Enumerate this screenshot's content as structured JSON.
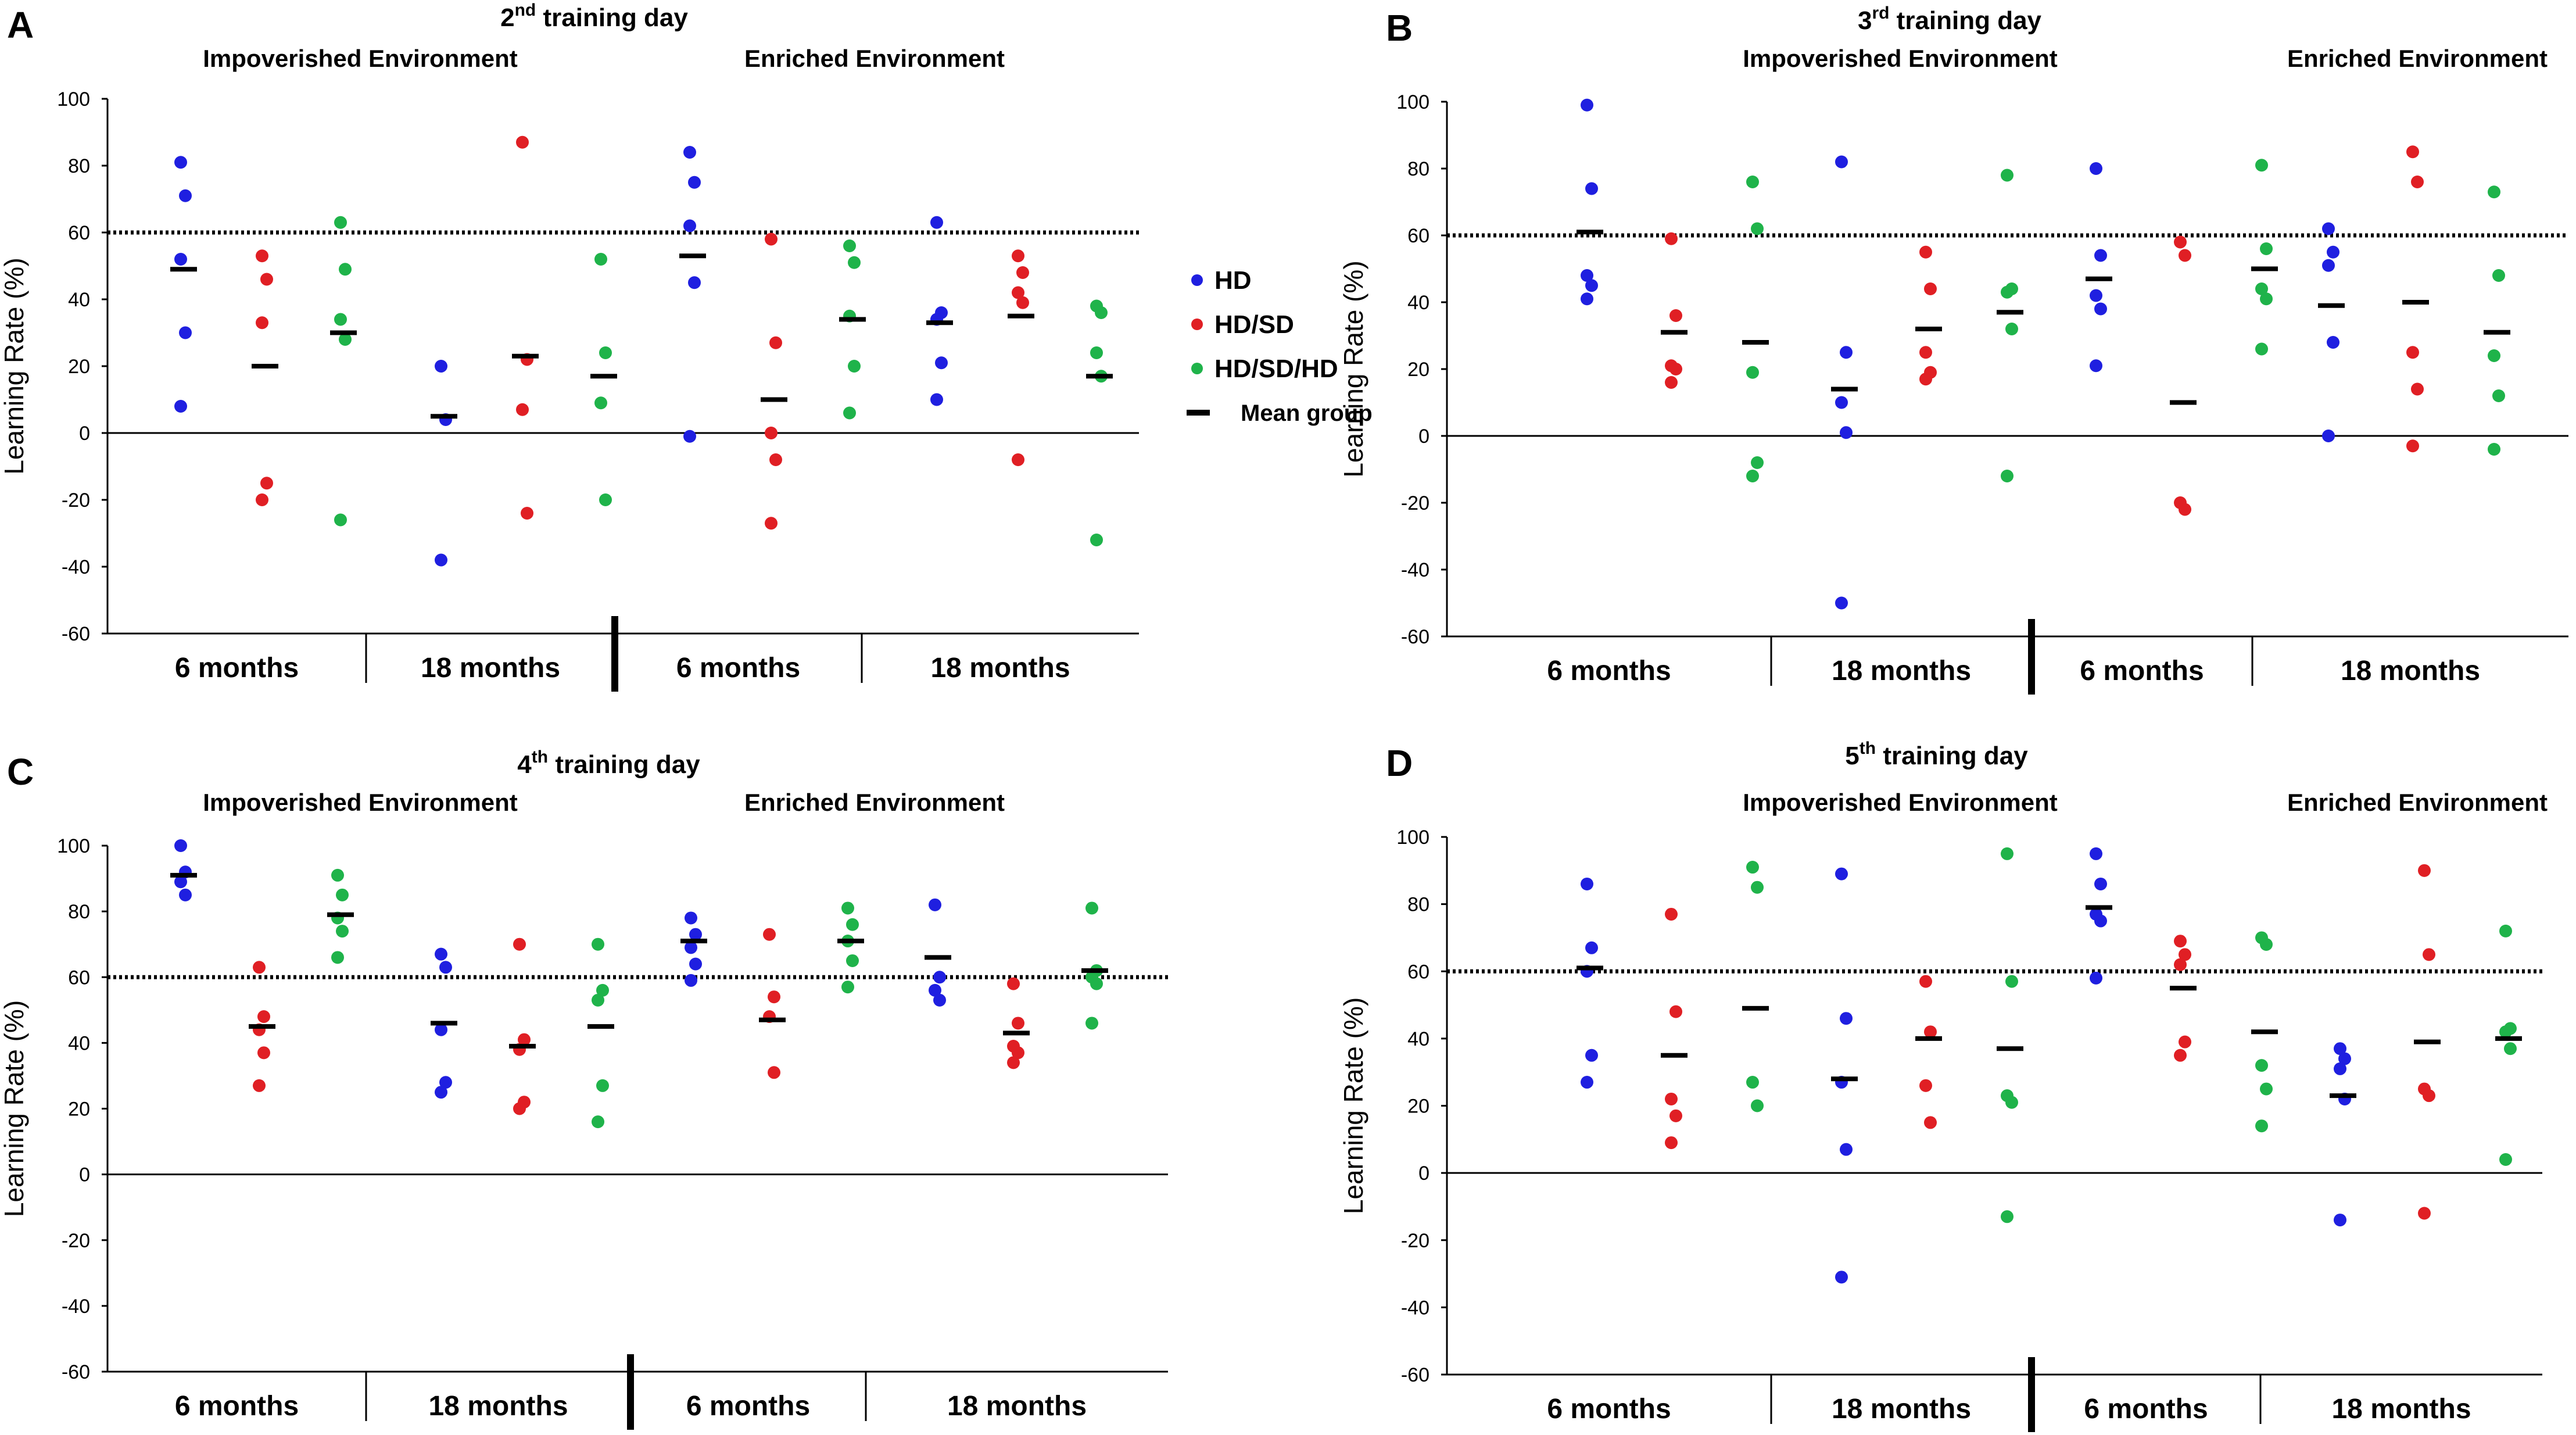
{
  "colors": {
    "HD": "#1f1fe0",
    "HD/SD": "#e01f24",
    "HD/SD/HD": "#1fb34a",
    "mean": "#000000"
  },
  "legend": [
    {
      "key": "HD",
      "label": "HD"
    },
    {
      "key": "HD/SD",
      "label": "HD/SD"
    },
    {
      "key": "HD/SD/HD",
      "label": "HD/SD/HD"
    },
    {
      "key": "mean",
      "label": "Mean group"
    }
  ],
  "shared": {
    "ylabel": "Learning Rate (%)",
    "ylim": [
      -60,
      100
    ],
    "yticks": [
      100,
      80,
      60,
      40,
      20,
      0,
      -20,
      -40,
      -60
    ],
    "threshold": 60,
    "env_labels": [
      "Impoverished Environment",
      "Enriched Environment"
    ],
    "age_labels": [
      "6 months",
      "18 months",
      "6 months",
      "18 months"
    ],
    "groups": [
      "HD",
      "HD/SD",
      "HD/SD/HD"
    ]
  },
  "chart_data": [
    {
      "letter": "A",
      "type": "scatter",
      "title_pre": "2",
      "title_sup": "nd",
      "title_post": " training day",
      "blocks": [
        {
          "env": "Impoverished",
          "age": "6 months",
          "HD": [
            81,
            71,
            52,
            30,
            8
          ],
          "HD/SD": [
            53,
            46,
            33,
            -15,
            -20
          ],
          "HD/SD/HD": [
            63,
            49,
            34,
            28,
            -26
          ],
          "means": [
            49,
            20,
            30
          ]
        },
        {
          "env": "Impoverished",
          "age": "18 months",
          "HD": [
            20,
            4,
            -38
          ],
          "HD/SD": [
            87,
            22,
            7,
            -24
          ],
          "HD/SD/HD": [
            52,
            24,
            9,
            -20
          ],
          "means": [
            5,
            23,
            17
          ]
        },
        {
          "env": "Enriched",
          "age": "6 months",
          "HD": [
            84,
            75,
            62,
            45,
            -1
          ],
          "HD/SD": [
            58,
            27,
            0,
            -8,
            -27
          ],
          "HD/SD/HD": [
            56,
            51,
            35,
            20,
            6
          ],
          "means": [
            53,
            10,
            34
          ]
        },
        {
          "env": "Enriched",
          "age": "18 months",
          "HD": [
            63,
            36,
            34,
            21,
            10
          ],
          "HD/SD": [
            53,
            48,
            42,
            39,
            -8
          ],
          "HD/SD/HD": [
            38,
            36,
            24,
            17,
            -32
          ],
          "means": [
            33,
            35,
            17
          ]
        }
      ]
    },
    {
      "letter": "B",
      "type": "scatter",
      "title_pre": "3",
      "title_sup": "rd",
      "title_post": " training day",
      "blocks": [
        {
          "env": "Impoverished",
          "age": "6 months",
          "HD": [
            99,
            74,
            48,
            45,
            41
          ],
          "HD/SD": [
            59,
            36,
            21,
            20,
            16
          ],
          "HD/SD/HD": [
            76,
            62,
            19,
            -8,
            -12
          ],
          "means": [
            61,
            31,
            28
          ]
        },
        {
          "env": "Impoverished",
          "age": "18 months",
          "HD": [
            82,
            25,
            10,
            1,
            -50
          ],
          "HD/SD": [
            55,
            44,
            25,
            19,
            17
          ],
          "HD/SD/HD": [
            78,
            44,
            43,
            32,
            -12
          ],
          "means": [
            14,
            32,
            37
          ]
        },
        {
          "env": "Enriched",
          "age": "6 months",
          "HD": [
            80,
            54,
            42,
            38,
            21
          ],
          "HD/SD": [
            58,
            54,
            -20,
            -22
          ],
          "HD/SD/HD": [
            81,
            56,
            44,
            41,
            26
          ],
          "means": [
            47,
            10,
            50
          ]
        },
        {
          "env": "Enriched",
          "age": "18 months",
          "HD": [
            62,
            55,
            51,
            28,
            0
          ],
          "HD/SD": [
            85,
            76,
            25,
            14,
            -3
          ],
          "HD/SD/HD": [
            73,
            48,
            24,
            12,
            -4
          ],
          "means": [
            39,
            40,
            31
          ]
        }
      ]
    },
    {
      "letter": "C",
      "type": "scatter",
      "title_pre": "4",
      "title_sup": "th",
      "title_post": " training day",
      "blocks": [
        {
          "env": "Impoverished",
          "age": "6 months",
          "HD": [
            100,
            92,
            89,
            85
          ],
          "HD/SD": [
            63,
            48,
            44,
            37,
            27
          ],
          "HD/SD/HD": [
            91,
            85,
            78,
            74,
            66
          ],
          "means": [
            91,
            45,
            79
          ]
        },
        {
          "env": "Impoverished",
          "age": "18 months",
          "HD": [
            67,
            63,
            44,
            28,
            25
          ],
          "HD/SD": [
            70,
            41,
            38,
            22,
            20
          ],
          "HD/SD/HD": [
            70,
            56,
            53,
            27,
            16
          ],
          "means": [
            46,
            39,
            45
          ]
        },
        {
          "env": "Enriched",
          "age": "6 months",
          "HD": [
            78,
            73,
            69,
            64,
            59
          ],
          "HD/SD": [
            73,
            54,
            48,
            31
          ],
          "HD/SD/HD": [
            81,
            76,
            71,
            65,
            57
          ],
          "means": [
            71,
            47,
            71
          ]
        },
        {
          "env": "Enriched",
          "age": "18 months",
          "HD": [
            82,
            60,
            56,
            53
          ],
          "HD/SD": [
            58,
            46,
            39,
            37,
            34
          ],
          "HD/SD/HD": [
            81,
            62,
            60,
            58,
            46
          ],
          "means": [
            66,
            43,
            62
          ]
        }
      ]
    },
    {
      "letter": "D",
      "type": "scatter",
      "title_pre": "5",
      "title_sup": "th",
      "title_post": " training day",
      "blocks": [
        {
          "env": "Impoverished",
          "age": "6 months",
          "HD": [
            86,
            67,
            60,
            35,
            27
          ],
          "HD/SD": [
            77,
            48,
            22,
            17,
            9
          ],
          "HD/SD/HD": [
            91,
            85,
            27,
            20
          ],
          "means": [
            61,
            35,
            49
          ]
        },
        {
          "env": "Impoverished",
          "age": "18 months",
          "HD": [
            89,
            46,
            27,
            7,
            -31
          ],
          "HD/SD": [
            57,
            42,
            26,
            15
          ],
          "HD/SD/HD": [
            95,
            57,
            23,
            21,
            -13
          ],
          "means": [
            28,
            40,
            37
          ]
        },
        {
          "env": "Enriched",
          "age": "6 months",
          "HD": [
            95,
            86,
            77,
            75,
            58
          ],
          "HD/SD": [
            69,
            65,
            62,
            39,
            35
          ],
          "HD/SD/HD": [
            70,
            68,
            32,
            25,
            14
          ],
          "means": [
            79,
            55,
            42
          ]
        },
        {
          "env": "Enriched",
          "age": "18 months",
          "HD": [
            37,
            34,
            31,
            22,
            -14
          ],
          "HD/SD": [
            90,
            65,
            25,
            23,
            -12
          ],
          "HD/SD/HD": [
            72,
            43,
            42,
            37,
            4
          ],
          "means": [
            23,
            39,
            40
          ]
        }
      ]
    }
  ]
}
